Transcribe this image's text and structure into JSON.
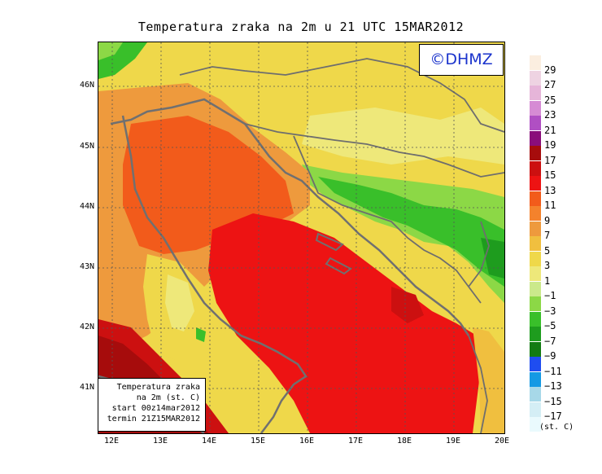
{
  "title": "Temperatura zraka na 2m u 21 UTC 15MAR2012",
  "copyright": "©DHMZ",
  "info_box": {
    "line1": "Temperatura zraka",
    "line2": "na 2m (st. C)",
    "line3": "start 00z14mar2012",
    "line4": "termin 21Z15MAR2012"
  },
  "lat_labels": [
    "46N",
    "45N",
    "44N",
    "43N",
    "42N",
    "41N"
  ],
  "lon_labels": [
    "12E",
    "13E",
    "14E",
    "15E",
    "16E",
    "17E",
    "18E",
    "19E",
    "20E"
  ],
  "legend": {
    "unit": "(st. C)",
    "labels": [
      "29",
      "27",
      "25",
      "23",
      "21",
      "19",
      "17",
      "15",
      "13",
      "11",
      "9",
      "7",
      "5",
      "3",
      "1",
      "−1",
      "−3",
      "−5",
      "−7",
      "−9",
      "−11",
      "−13",
      "−15",
      "−17"
    ],
    "colors": [
      "#fbeee0",
      "#eed3e2",
      "#e6b5d9",
      "#d68bd4",
      "#b04fc3",
      "#8a0d7a",
      "#a60c0c",
      "#cc1010",
      "#ed1313",
      "#f25b1b",
      "#f4822c",
      "#ee9a3d",
      "#f0bf3f",
      "#efd84a",
      "#eee87a",
      "#cbe98b",
      "#8cd846",
      "#39bf2a",
      "#1e9c1e",
      "#127b12",
      "#1f4df0",
      "#1499e4",
      "#a7d8e8",
      "#d4eef5",
      "#eafafd"
    ]
  },
  "colors": {
    "sea_warm": "#ed1313",
    "sea_orange": "#f25b1b",
    "coast": "#f0bf3f",
    "land_yellow": "#efd84a",
    "land_green": "#39bf2a",
    "coastline": "#707070",
    "border": "#6e6e6e"
  }
}
